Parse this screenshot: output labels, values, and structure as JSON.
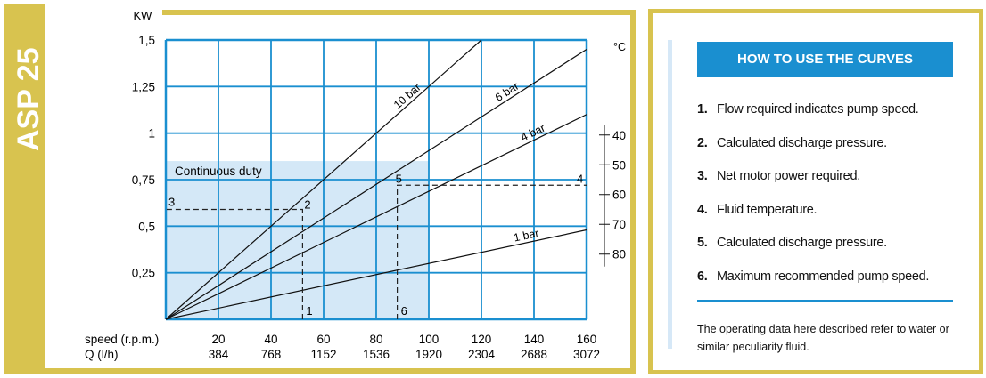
{
  "model": "ASP 25",
  "colors": {
    "frame": "#d8c34f",
    "grid": "#1a8fd0",
    "duty_fill": "#d4e8f7",
    "curves": "#111111"
  },
  "chart_data": {
    "type": "line",
    "ylabel": "KW",
    "y_ticks": [
      {
        "v": 1.5,
        "label": "1,5"
      },
      {
        "v": 1.25,
        "label": "1,25"
      },
      {
        "v": 1,
        "label": "1"
      },
      {
        "v": 0.75,
        "label": "0,75"
      },
      {
        "v": 0.5,
        "label": "0,5"
      },
      {
        "v": 0.25,
        "label": "0,25"
      }
    ],
    "ylim": [
      0,
      1.5
    ],
    "xlim": [
      0,
      160
    ],
    "x_row_labels": [
      "speed (r.p.m.)",
      "Q (l/h)"
    ],
    "x_ticks": [
      {
        "speed": 20,
        "q": "384"
      },
      {
        "speed": 40,
        "q": "768"
      },
      {
        "speed": 60,
        "q": "1152"
      },
      {
        "speed": 80,
        "q": "1536"
      },
      {
        "speed": 100,
        "q": "1920"
      },
      {
        "speed": 120,
        "q": "2304"
      },
      {
        "speed": 140,
        "q": "2688"
      },
      {
        "speed": 160,
        "q": "3072"
      }
    ],
    "grid": true,
    "series": [
      {
        "name": "10 bar",
        "x": [
          0,
          120
        ],
        "y": [
          0,
          1.5
        ]
      },
      {
        "name": "6 bar",
        "x": [
          0,
          160
        ],
        "y": [
          0,
          1.45
        ]
      },
      {
        "name": "4 bar",
        "x": [
          0,
          160
        ],
        "y": [
          0,
          1.1
        ]
      },
      {
        "name": "1 bar",
        "x": [
          0,
          160
        ],
        "y": [
          0,
          0.48
        ]
      }
    ],
    "continuous_duty": {
      "label": "Continuous duty",
      "speed_max": 100,
      "kw_max": 0.85
    },
    "temp_axis": {
      "unit": "°C",
      "ticks": [
        40,
        50,
        60,
        70,
        80
      ],
      "kw_at_40": 0.99,
      "kw_at_80": 0.35
    },
    "examples": [
      {
        "speed": 52,
        "kw": 0.59,
        "labels": {
          "flow": "1",
          "pressure": "2",
          "power": "3"
        }
      },
      {
        "speed": 88,
        "kw": 0.72,
        "labels": {
          "speed": "6",
          "pressure": "5",
          "temp": "4"
        }
      }
    ]
  },
  "instructions": {
    "title": "HOW TO USE THE CURVES",
    "steps": [
      {
        "n": "1.",
        "text": "Flow required indicates pump speed."
      },
      {
        "n": "2.",
        "text": "Calculated discharge pressure."
      },
      {
        "n": "3.",
        "text": "Net motor power required."
      },
      {
        "n": "4.",
        "text": "Fluid temperature."
      },
      {
        "n": "5.",
        "text": "Calculated discharge pressure."
      },
      {
        "n": "6.",
        "text": "Maximum recommended pump speed."
      }
    ],
    "note": "The operating data here described refer to water or similar peculiarity fluid."
  }
}
